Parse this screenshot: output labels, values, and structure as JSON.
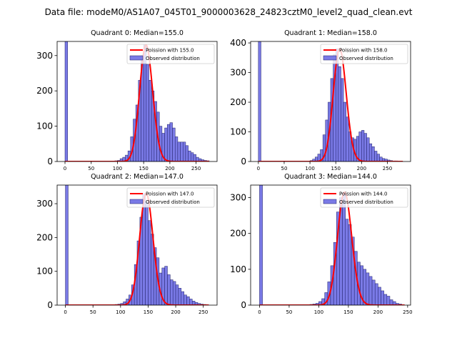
{
  "chart_data": {
    "suptitle": "Data file: modeM0/AS1A07_045T01_9000003628_24823cztM0_level2_quad_clean.evt",
    "legend_location": "top-right",
    "panels": [
      {
        "type": "bar",
        "title": "Quadrant 0: Median=155.0",
        "fit_label": "Poission with 155.0",
        "hist_label": "Observed distribution",
        "median": 155.0,
        "xlim": [
          -15,
          290
        ],
        "ylim": [
          0,
          340
        ],
        "xticks": [
          0,
          50,
          100,
          150,
          200,
          250
        ],
        "yticks": [
          0,
          100,
          200,
          300
        ],
        "bin_width": 5,
        "zero_bin_count": 340,
        "hist": [
          [
            95,
            2
          ],
          [
            100,
            3
          ],
          [
            105,
            8
          ],
          [
            110,
            12
          ],
          [
            115,
            18
          ],
          [
            120,
            30
          ],
          [
            125,
            70
          ],
          [
            130,
            120
          ],
          [
            135,
            160
          ],
          [
            140,
            230
          ],
          [
            145,
            300
          ],
          [
            150,
            330
          ],
          [
            155,
            275
          ],
          [
            160,
            230
          ],
          [
            165,
            200
          ],
          [
            170,
            170
          ],
          [
            175,
            140
          ],
          [
            180,
            100
          ],
          [
            185,
            80
          ],
          [
            190,
            95
          ],
          [
            195,
            105
          ],
          [
            200,
            110
          ],
          [
            205,
            95
          ],
          [
            210,
            70
          ],
          [
            215,
            55
          ],
          [
            220,
            55
          ],
          [
            225,
            55
          ],
          [
            230,
            45
          ],
          [
            235,
            30
          ],
          [
            240,
            25
          ],
          [
            245,
            20
          ],
          [
            250,
            12
          ],
          [
            255,
            8
          ],
          [
            260,
            5
          ],
          [
            265,
            3
          ],
          [
            270,
            2
          ]
        ],
        "fit_range": [
          0,
          275
        ]
      },
      {
        "type": "bar",
        "title": "Quadrant 1: Median=158.0",
        "fit_label": "Poission with 158.0",
        "hist_label": "Observed distribution",
        "median": 158.0,
        "xlim": [
          -15,
          295
        ],
        "ylim": [
          0,
          405
        ],
        "xticks": [
          0,
          50,
          100,
          150,
          200,
          250
        ],
        "yticks": [
          0,
          100,
          200,
          300,
          400
        ],
        "bin_width": 5,
        "zero_bin_count": 405,
        "hist": [
          [
            100,
            3
          ],
          [
            105,
            8
          ],
          [
            110,
            15
          ],
          [
            115,
            25
          ],
          [
            120,
            40
          ],
          [
            125,
            90
          ],
          [
            130,
            140
          ],
          [
            135,
            200
          ],
          [
            140,
            280
          ],
          [
            145,
            360
          ],
          [
            150,
            380
          ],
          [
            155,
            320
          ],
          [
            160,
            280
          ],
          [
            165,
            200
          ],
          [
            170,
            150
          ],
          [
            175,
            100
          ],
          [
            180,
            80
          ],
          [
            185,
            75
          ],
          [
            190,
            85
          ],
          [
            195,
            100
          ],
          [
            200,
            105
          ],
          [
            205,
            95
          ],
          [
            210,
            80
          ],
          [
            215,
            60
          ],
          [
            220,
            50
          ],
          [
            225,
            35
          ],
          [
            230,
            25
          ],
          [
            235,
            15
          ],
          [
            240,
            10
          ],
          [
            245,
            8
          ],
          [
            250,
            5
          ],
          [
            255,
            3
          ],
          [
            260,
            2
          ],
          [
            265,
            2
          ],
          [
            270,
            1
          ]
        ],
        "fit_range": [
          0,
          280
        ]
      },
      {
        "type": "bar",
        "title": "Quadrant 2: Median=147.0",
        "fit_label": "Poission with 147.0",
        "hist_label": "Observed distribution",
        "median": 147.0,
        "xlim": [
          -15,
          275
        ],
        "ylim": [
          0,
          355
        ],
        "xticks": [
          0,
          50,
          100,
          150,
          200,
          250
        ],
        "yticks": [
          0,
          100,
          200,
          300
        ],
        "bin_width": 5,
        "zero_bin_count": 355,
        "hist": [
          [
            90,
            2
          ],
          [
            95,
            3
          ],
          [
            100,
            5
          ],
          [
            105,
            10
          ],
          [
            110,
            18
          ],
          [
            115,
            30
          ],
          [
            120,
            60
          ],
          [
            125,
            120
          ],
          [
            130,
            190
          ],
          [
            135,
            260
          ],
          [
            140,
            330
          ],
          [
            145,
            305
          ],
          [
            150,
            250
          ],
          [
            155,
            210
          ],
          [
            160,
            170
          ],
          [
            165,
            140
          ],
          [
            170,
            95
          ],
          [
            175,
            110
          ],
          [
            180,
            115
          ],
          [
            185,
            90
          ],
          [
            190,
            75
          ],
          [
            195,
            70
          ],
          [
            200,
            60
          ],
          [
            205,
            50
          ],
          [
            210,
            40
          ],
          [
            215,
            30
          ],
          [
            220,
            25
          ],
          [
            225,
            18
          ],
          [
            230,
            12
          ],
          [
            235,
            8
          ],
          [
            240,
            5
          ],
          [
            245,
            3
          ],
          [
            250,
            2
          ]
        ],
        "fit_range": [
          0,
          260
        ]
      },
      {
        "type": "bar",
        "title": "Quadrant 3: Median=144.0",
        "fit_label": "Poission with 144.0",
        "hist_label": "Observed distribution",
        "median": 144.0,
        "xlim": [
          -15,
          255
        ],
        "ylim": [
          0,
          335
        ],
        "xticks": [
          0,
          50,
          100,
          150,
          200,
          250
        ],
        "yticks": [
          0,
          100,
          200,
          300
        ],
        "bin_width": 5,
        "zero_bin_count": 335,
        "hist": [
          [
            85,
            2
          ],
          [
            90,
            3
          ],
          [
            95,
            5
          ],
          [
            100,
            10
          ],
          [
            105,
            18
          ],
          [
            110,
            35
          ],
          [
            115,
            65
          ],
          [
            120,
            110
          ],
          [
            125,
            175
          ],
          [
            130,
            260
          ],
          [
            135,
            300
          ],
          [
            140,
            315
          ],
          [
            145,
            240
          ],
          [
            150,
            225
          ],
          [
            155,
            190
          ],
          [
            160,
            150
          ],
          [
            165,
            120
          ],
          [
            170,
            110
          ],
          [
            175,
            100
          ],
          [
            180,
            90
          ],
          [
            185,
            80
          ],
          [
            190,
            70
          ],
          [
            195,
            60
          ],
          [
            200,
            50
          ],
          [
            205,
            40
          ],
          [
            210,
            30
          ],
          [
            215,
            25
          ],
          [
            220,
            15
          ],
          [
            225,
            10
          ],
          [
            230,
            5
          ],
          [
            235,
            3
          ]
        ],
        "fit_range": [
          0,
          245
        ]
      }
    ]
  }
}
